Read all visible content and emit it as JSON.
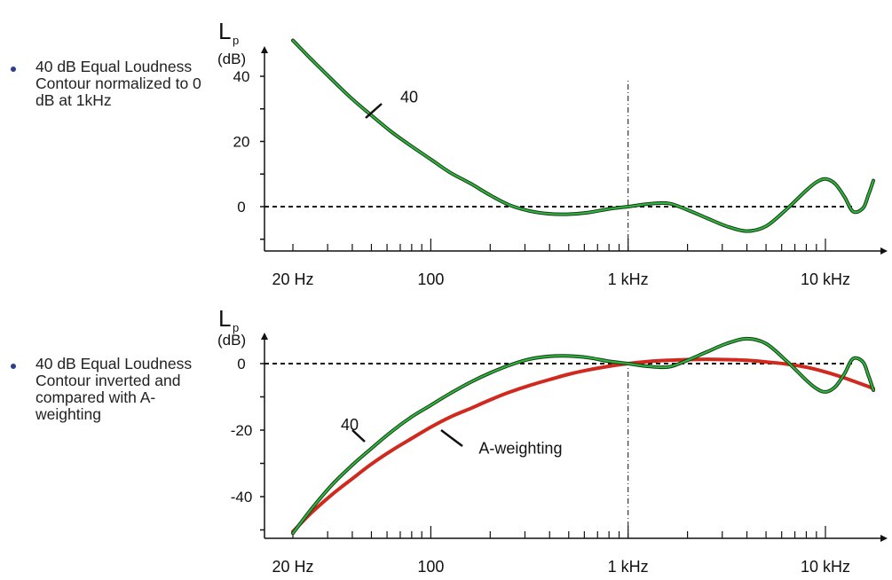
{
  "bullets": [
    {
      "text": "40 dB Equal Loudness Contour normalized to 0 dB at 1kHz"
    },
    {
      "text": "40 dB Equal Loudness Contour inverted and compared with A-weighting"
    }
  ],
  "colors": {
    "contour": "#2db83d",
    "contour_edge": "#1a3a1a",
    "a_weighting": "#d02a1f",
    "bullet": "#2a3f8f"
  },
  "chart_data": [
    {
      "type": "line",
      "ylabel_main": "L",
      "ylabel_sub": "p",
      "ylabel_unit": "(dB)",
      "x_scale": "log",
      "xlim": [
        20,
        20000
      ],
      "ylim": [
        -15,
        48
      ],
      "xticks": [
        {
          "value": 20,
          "label": "20 Hz"
        },
        {
          "value": 100,
          "label": "100"
        },
        {
          "value": 1000,
          "label": "1 kHz"
        },
        {
          "value": 10000,
          "label": "10 kHz"
        }
      ],
      "yticks": [
        {
          "value": 40,
          "label": "40"
        },
        {
          "value": 20,
          "label": "20"
        },
        {
          "value": 0,
          "label": "0"
        }
      ],
      "reference_line_y": 0,
      "reference_line_x": 1000,
      "series": [
        {
          "name": "40",
          "color": "#2db83d",
          "x": [
            20,
            25,
            31.5,
            40,
            50,
            63,
            80,
            100,
            125,
            160,
            200,
            250,
            315,
            400,
            500,
            630,
            800,
            1000,
            1250,
            1600,
            2000,
            2500,
            3150,
            4000,
            5000,
            6300,
            8000,
            9000,
            10000,
            11200,
            12500,
            13800,
            15500,
            16500,
            17500
          ],
          "y": [
            51,
            45,
            39,
            33,
            28,
            23,
            18.5,
            14.5,
            10.5,
            7,
            3.5,
            0.5,
            -1.3,
            -2.2,
            -2.3,
            -1.8,
            -0.7,
            0,
            0.8,
            1,
            -1,
            -3.5,
            -6,
            -7.5,
            -6,
            -1,
            5,
            7.5,
            8.5,
            7,
            3,
            -1.5,
            -0.5,
            3.5,
            8
          ]
        }
      ],
      "annotations": [
        {
          "text": "40",
          "x": 70,
          "y": 32
        }
      ]
    },
    {
      "type": "line",
      "ylabel_main": "L",
      "ylabel_sub": "p",
      "ylabel_unit": "(dB)",
      "x_scale": "log",
      "xlim": [
        20,
        20000
      ],
      "ylim": [
        -53,
        8
      ],
      "xticks": [
        {
          "value": 20,
          "label": "20 Hz"
        },
        {
          "value": 100,
          "label": "100"
        },
        {
          "value": 1000,
          "label": "1 kHz"
        },
        {
          "value": 10000,
          "label": "10 kHz"
        }
      ],
      "yticks": [
        {
          "value": 0,
          "label": "0"
        },
        {
          "value": -20,
          "label": "-20"
        },
        {
          "value": -40,
          "label": "-40"
        }
      ],
      "reference_line_y": 0,
      "reference_line_x": 1000,
      "series": [
        {
          "name": "40",
          "color": "#2db83d",
          "x": [
            20,
            25,
            31.5,
            40,
            50,
            63,
            80,
            100,
            125,
            160,
            200,
            250,
            315,
            400,
            500,
            630,
            800,
            1000,
            1250,
            1600,
            2000,
            2500,
            3150,
            4000,
            5000,
            6300,
            8000,
            9000,
            10000,
            11200,
            12500,
            13800,
            15500,
            16500,
            17500
          ],
          "y": [
            -51,
            -43.5,
            -36.5,
            -30.5,
            -25.5,
            -20.5,
            -16,
            -12.5,
            -9,
            -5.5,
            -2.8,
            -0.5,
            1.3,
            2.2,
            2.3,
            1.8,
            0.7,
            0,
            -0.8,
            -1,
            1,
            3.5,
            6,
            7.5,
            6,
            1,
            -5,
            -7.5,
            -8.5,
            -7,
            -3,
            1.5,
            0.5,
            -3.5,
            -8
          ]
        },
        {
          "name": "A-weighting",
          "color": "#d02a1f",
          "x": [
            20,
            25,
            31.5,
            40,
            50,
            63,
            80,
            100,
            125,
            160,
            200,
            250,
            315,
            400,
            500,
            630,
            800,
            1000,
            1250,
            1600,
            2000,
            2500,
            3150,
            4000,
            5000,
            6300,
            8000,
            10000,
            12500,
            16000,
            17500
          ],
          "y": [
            -50.5,
            -44.7,
            -39.4,
            -34.6,
            -30.2,
            -26.2,
            -22.5,
            -19.1,
            -16.1,
            -13.4,
            -10.9,
            -8.6,
            -6.6,
            -4.8,
            -3.2,
            -1.9,
            -0.8,
            0,
            0.6,
            1.0,
            1.2,
            1.3,
            1.2,
            1.0,
            0.5,
            -0.1,
            -1.1,
            -2.5,
            -4.3,
            -6.6,
            -7.5
          ]
        }
      ],
      "annotations": [
        {
          "text": "40",
          "x": 35,
          "y": -20
        },
        {
          "text": "A-weighting",
          "x": 175,
          "y": -27
        }
      ]
    }
  ]
}
